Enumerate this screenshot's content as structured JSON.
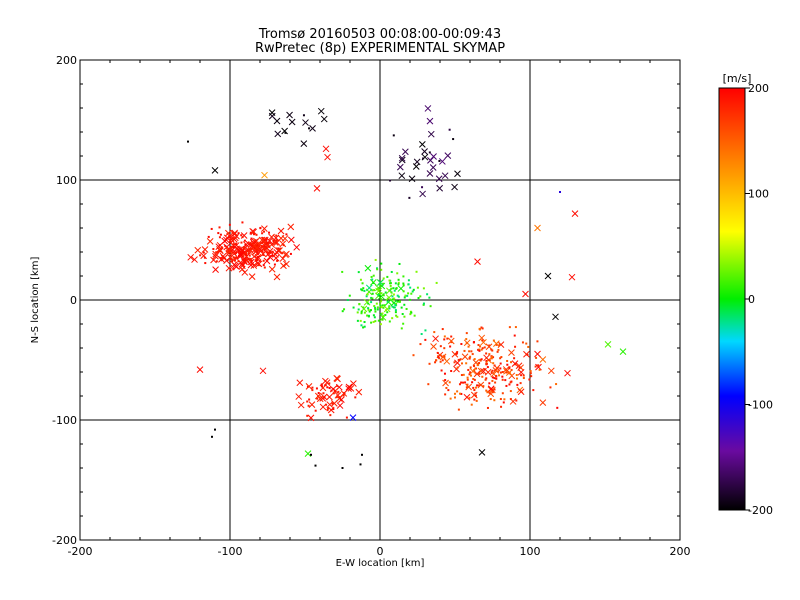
{
  "chart_data": {
    "type": "scatter",
    "title": "Tromsø 20160503 00:08:00-00:09:43",
    "subtitle": "RwPretec (8p) EXPERIMENTAL SKYMAP",
    "xlabel": "E-W location [km]",
    "ylabel": "N-S location [km]",
    "xlim": [
      -200,
      200
    ],
    "ylim": [
      -200,
      200
    ],
    "xticks": [
      "-200",
      "-100",
      "0",
      "100",
      "200"
    ],
    "yticks": [
      "-200",
      "-100",
      "0",
      "100",
      "200"
    ],
    "grid": true,
    "colorbar": {
      "title": "[m/s]",
      "range": [
        -200,
        200
      ],
      "ticks": [
        "200",
        "100",
        "0",
        "-100",
        "-200"
      ],
      "colormap": "black-purple-blue-cyan-green-yellow-orange-red"
    },
    "clusters": [
      {
        "center": [
          -88,
          42
        ],
        "spread": [
          14,
          8
        ],
        "count": 260,
        "velocity": [
          180,
          200
        ],
        "cross_fraction": 0.55
      },
      {
        "center": [
          70,
          -55
        ],
        "spread": [
          18,
          16
        ],
        "count": 280,
        "velocity": [
          140,
          200
        ],
        "cross_fraction": 0.2
      },
      {
        "center": [
          5,
          2
        ],
        "spread": [
          12,
          12
        ],
        "count": 200,
        "velocity": [
          -20,
          40
        ],
        "cross_fraction": 0.1
      },
      {
        "center": [
          -35,
          -78
        ],
        "spread": [
          10,
          8
        ],
        "count": 70,
        "velocity": [
          180,
          200
        ],
        "cross_fraction": 0.45
      },
      {
        "center": [
          30,
          115
        ],
        "spread": [
          12,
          18
        ],
        "count": 35,
        "velocity": [
          -200,
          -160
        ],
        "cross_fraction": 0.8
      },
      {
        "center": [
          -60,
          148
        ],
        "spread": [
          10,
          8
        ],
        "count": 15,
        "velocity": [
          -200,
          -190
        ],
        "cross_fraction": 0.8
      }
    ],
    "points": [
      {
        "x": -120,
        "y": -58,
        "v": 195,
        "m": "x"
      },
      {
        "x": -78,
        "y": -59,
        "v": 195,
        "m": "x"
      },
      {
        "x": 152,
        "y": -37,
        "v": 20,
        "m": "x"
      },
      {
        "x": 162,
        "y": -43,
        "v": 10,
        "m": "x"
      },
      {
        "x": 130,
        "y": 72,
        "v": 195,
        "m": "x"
      },
      {
        "x": 105,
        "y": 60,
        "v": 140,
        "m": "x"
      },
      {
        "x": 112,
        "y": 20,
        "v": -200,
        "m": "x"
      },
      {
        "x": 117,
        "y": -14,
        "v": -200,
        "m": "x"
      },
      {
        "x": 128,
        "y": 19,
        "v": 195,
        "m": "x"
      },
      {
        "x": 125,
        "y": -61,
        "v": 195,
        "m": "x"
      },
      {
        "x": 68,
        "y": -127,
        "v": -200,
        "m": "x"
      },
      {
        "x": -48,
        "y": -128,
        "v": 10,
        "m": "x"
      },
      {
        "x": -18,
        "y": -98,
        "v": -90,
        "m": "x"
      },
      {
        "x": -110,
        "y": 108,
        "v": -200,
        "m": "x"
      },
      {
        "x": -77,
        "y": 104,
        "v": 120,
        "m": "x"
      },
      {
        "x": -36,
        "y": 126,
        "v": 195,
        "m": "x"
      },
      {
        "x": -35,
        "y": 119,
        "v": 195,
        "m": "x"
      },
      {
        "x": -42,
        "y": 93,
        "v": 195,
        "m": "x"
      },
      {
        "x": -110,
        "y": -108,
        "v": -200,
        "m": "."
      },
      {
        "x": -112,
        "y": -114,
        "v": -200,
        "m": "."
      },
      {
        "x": -46,
        "y": -129,
        "v": -200,
        "m": "."
      },
      {
        "x": -43,
        "y": -138,
        "v": -200,
        "m": "."
      },
      {
        "x": -25,
        "y": -140,
        "v": -200,
        "m": "."
      },
      {
        "x": -13,
        "y": -137,
        "v": -200,
        "m": "."
      },
      {
        "x": -12,
        "y": -129,
        "v": -200,
        "m": "."
      },
      {
        "x": -128,
        "y": 132,
        "v": -200,
        "m": "."
      },
      {
        "x": 65,
        "y": 32,
        "v": 195,
        "m": "x"
      },
      {
        "x": 97,
        "y": 5,
        "v": 195,
        "m": "x"
      },
      {
        "x": 90,
        "y": -53,
        "v": 195,
        "m": "x"
      },
      {
        "x": 105,
        "y": -45,
        "v": 195,
        "m": "x"
      },
      {
        "x": 120,
        "y": 90,
        "v": -110,
        "m": "."
      }
    ]
  }
}
